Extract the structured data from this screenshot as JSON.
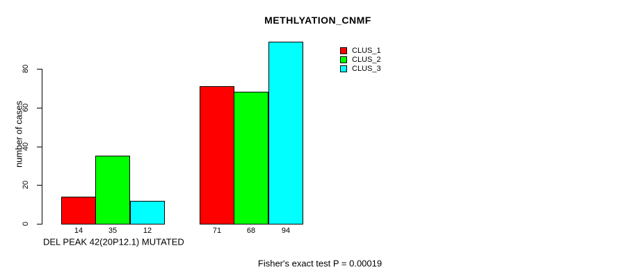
{
  "chart_data": {
    "type": "bar",
    "title": "METHLYATION_CNMF",
    "ylabel": "number of cases",
    "xlabel": "DEL PEAK 42(20P12.1) MUTATED",
    "footnote": "Fisher's exact test P = 0.00019",
    "grid": false,
    "legend_position": "top-right",
    "yticks": [
      0,
      20,
      40,
      60,
      80
    ],
    "ylim": [
      0,
      94
    ],
    "series": [
      {
        "name": "CLUS_1",
        "color": "#ff0000",
        "values": [
          14,
          71
        ]
      },
      {
        "name": "CLUS_2",
        "color": "#00ff00",
        "values": [
          35,
          68
        ]
      },
      {
        "name": "CLUS_3",
        "color": "#00ffff",
        "values": [
          12,
          94
        ]
      }
    ],
    "bar_value_labels": [
      [
        "14",
        "35",
        "12"
      ],
      [
        "71",
        "68",
        "94"
      ]
    ]
  },
  "colors": {
    "background": "#ffffff",
    "axis": "#000000",
    "text": "#000000"
  }
}
